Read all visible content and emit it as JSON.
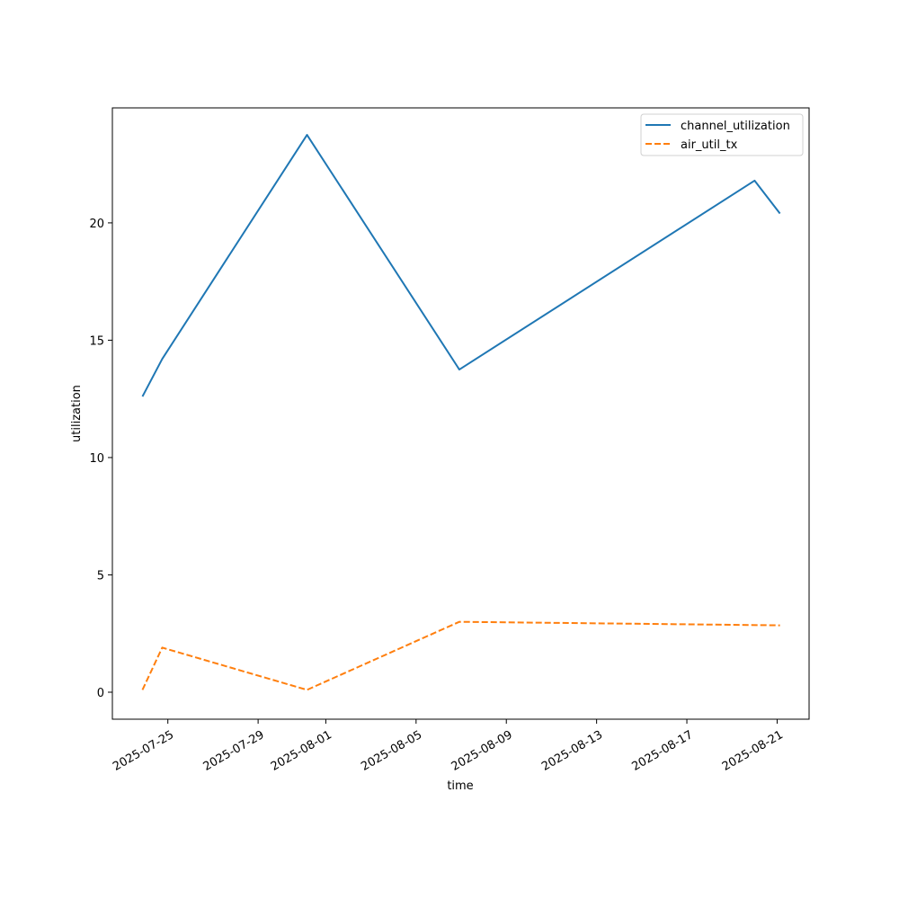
{
  "chart_data": {
    "type": "line",
    "xlabel": "time",
    "ylabel": "utilization",
    "x_ticks": [
      "2025-07-25",
      "2025-07-29",
      "2025-08-01",
      "2025-08-05",
      "2025-08-09",
      "2025-08-13",
      "2025-08-17",
      "2025-08-21"
    ],
    "y_ticks": [
      0,
      5,
      10,
      15,
      20
    ],
    "xlim": [
      "2025-07-22 13:00",
      "2025-08-22 10:00"
    ],
    "ylim": [
      -1.15,
      24.9
    ],
    "legend_position": "top-right",
    "grid": false,
    "series": [
      {
        "name": "channel_utilization",
        "color": "#1f77b4",
        "style": "solid",
        "points": [
          {
            "x": "2025-07-23 21:00",
            "y": 12.6
          },
          {
            "x": "2025-07-24 18:00",
            "y": 14.2
          },
          {
            "x": "2025-07-31 04:00",
            "y": 23.75
          },
          {
            "x": "2025-08-06 22:00",
            "y": 13.75
          },
          {
            "x": "2025-08-20 00:00",
            "y": 21.8
          },
          {
            "x": "2025-08-21 03:00",
            "y": 20.4
          }
        ]
      },
      {
        "name": "air_util_tx",
        "color": "#ff7f0e",
        "style": "dashed",
        "points": [
          {
            "x": "2025-07-23 21:00",
            "y": 0.1
          },
          {
            "x": "2025-07-24 18:00",
            "y": 1.9
          },
          {
            "x": "2025-07-31 04:00",
            "y": 0.1
          },
          {
            "x": "2025-08-06 22:00",
            "y": 3.0
          },
          {
            "x": "2025-08-21 03:00",
            "y": 2.85
          }
        ]
      }
    ]
  }
}
